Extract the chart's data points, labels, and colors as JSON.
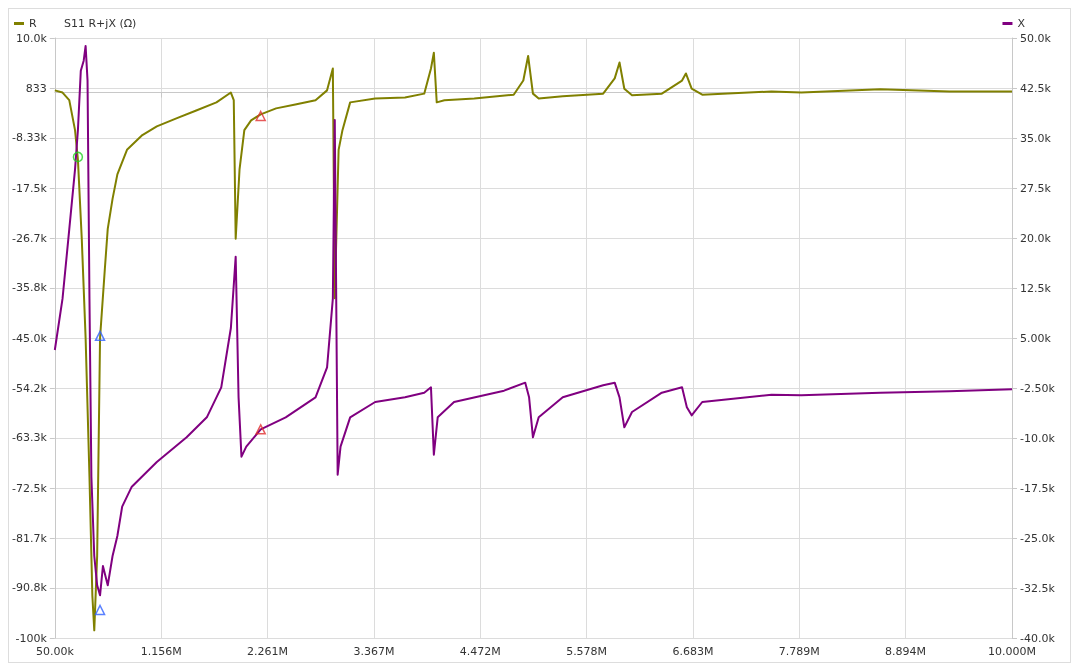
{
  "chart_data": {
    "type": "line",
    "title": "S11 R+jX (Ω)",
    "xlim": [
      50000,
      10000000
    ],
    "xticks": [
      {
        "value": 50000,
        "label": "50.00k"
      },
      {
        "value": 1156000,
        "label": "1.156M"
      },
      {
        "value": 2261000,
        "label": "2.261M"
      },
      {
        "value": 3367000,
        "label": "3.367M"
      },
      {
        "value": 4472000,
        "label": "4.472M"
      },
      {
        "value": 5578000,
        "label": "5.578M"
      },
      {
        "value": 6683000,
        "label": "6.683M"
      },
      {
        "value": 7789000,
        "label": "7.789M"
      },
      {
        "value": 8894000,
        "label": "8.894M"
      },
      {
        "value": 10000000,
        "label": "10.000M"
      }
    ],
    "ylim": [
      -100000,
      10000
    ],
    "yticks": [
      {
        "value": 10000,
        "label": "10.0k"
      },
      833,
      {
        "value": -8333,
        "label": "-8.33k"
      },
      {
        "value": -17500,
        "label": "-17.5k"
      },
      {
        "value": -26667,
        "label": "-26.7k"
      },
      {
        "value": -35833,
        "label": "-35.8k"
      },
      {
        "value": -45000,
        "label": "-45.0k"
      },
      {
        "value": -54167,
        "label": "-54.2k"
      },
      {
        "value": -63333,
        "label": "-63.3k"
      },
      {
        "value": -72500,
        "label": "-72.5k"
      },
      {
        "value": -81667,
        "label": "-81.7k"
      },
      {
        "value": -90833,
        "label": "-90.8k"
      },
      {
        "value": -100000,
        "label": "-100k"
      }
    ],
    "y2lim": [
      -40000,
      50000
    ],
    "y2ticks": [
      {
        "value": 50000,
        "label": "50.0k"
      },
      {
        "value": 42500,
        "label": "42.5k"
      },
      {
        "value": 35000,
        "label": "35.0k"
      },
      {
        "value": 27500,
        "label": "27.5k"
      },
      {
        "value": 20000,
        "label": "20.0k"
      },
      {
        "value": 12500,
        "label": "12.5k"
      },
      {
        "value": 5000,
        "label": "5.00k"
      },
      {
        "value": -2500,
        "label": "-2.50k"
      },
      {
        "value": -10000,
        "label": "-10.0k"
      },
      {
        "value": -17500,
        "label": "-17.5k"
      },
      {
        "value": -25000,
        "label": "-25.0k"
      },
      {
        "value": -32500,
        "label": "-32.5k"
      },
      {
        "value": -40000,
        "label": "-40.0k"
      }
    ],
    "grid": true,
    "legend": "top",
    "marker": "none",
    "series": [
      {
        "name": "R",
        "color": "#808000",
        "x": [
          50000,
          130000,
          200000,
          260000,
          290000,
          330000,
          370000,
          410000,
          440000,
          460000,
          490000,
          520000,
          570000,
          600000,
          650000,
          700000,
          800000,
          960000,
          1110000,
          1320000,
          1520000,
          1730000,
          1880000,
          1910000,
          1930000,
          1970000,
          2020000,
          2090000,
          2190000,
          2350000,
          2550000,
          2760000,
          2880000,
          2940000,
          2960000,
          3000000,
          3040000,
          3120000,
          3380000,
          3690000,
          3890000,
          3960000,
          3990000,
          4020000,
          4100000,
          4410000,
          4820000,
          4920000,
          4970000,
          5020000,
          5080000,
          5330000,
          5750000,
          5870000,
          5920000,
          5970000,
          6050000,
          6360000,
          6570000,
          6610000,
          6670000,
          6780000,
          7500000,
          7810000,
          8630000,
          9350000,
          10000000
        ],
        "values": [
          400,
          0,
          -1400,
          -6900,
          -12300,
          -26800,
          -45000,
          -70400,
          -92200,
          -98600,
          -84900,
          -45000,
          -32300,
          -25000,
          -19500,
          -15000,
          -10500,
          -7800,
          -6200,
          -4700,
          -3300,
          -1800,
          0,
          -1400,
          -26800,
          -14100,
          -6900,
          -5100,
          -4000,
          -2900,
          -2200,
          -1400,
          400,
          4400,
          -37700,
          -10500,
          -6900,
          -1800,
          -1100,
          -900,
          -200,
          4400,
          7300,
          -1800,
          -1400,
          -1100,
          -400,
          2200,
          6700,
          -200,
          -1100,
          -700,
          -200,
          2600,
          5500,
          700,
          -500,
          -200,
          2200,
          3500,
          700,
          -400,
          200,
          0,
          600,
          200,
          200
        ]
      },
      {
        "name": "X",
        "color": "#800080",
        "axis": "y2",
        "x": [
          50000,
          130000,
          200000,
          260000,
          290000,
          320000,
          350000,
          370000,
          390000,
          410000,
          430000,
          460000,
          490000,
          520000,
          550000,
          600000,
          650000,
          700000,
          750000,
          850000,
          1110000,
          1420000,
          1630000,
          1780000,
          1880000,
          1930000,
          1960000,
          1990000,
          2040000,
          2190000,
          2450000,
          2760000,
          2880000,
          2940000,
          2960000,
          2990000,
          3020000,
          3120000,
          3380000,
          3690000,
          3890000,
          3960000,
          3990000,
          4030000,
          4200000,
          4720000,
          4940000,
          4980000,
          5020000,
          5080000,
          5330000,
          5750000,
          5870000,
          5920000,
          5970000,
          6050000,
          6360000,
          6570000,
          6620000,
          6670000,
          6780000,
          7500000,
          7810000,
          8630000,
          9350000,
          10000000
        ],
        "values": [
          3200,
          10900,
          21300,
          30300,
          36200,
          45100,
          46600,
          48800,
          43600,
          10900,
          -15800,
          -27700,
          -32100,
          -33600,
          -29200,
          -32100,
          -27700,
          -24700,
          -20300,
          -17300,
          -13600,
          -9900,
          -6900,
          -2400,
          6500,
          17200,
          -3900,
          -12800,
          -11300,
          -8700,
          -6900,
          -3900,
          600,
          10900,
          37700,
          -15500,
          -11300,
          -6900,
          -4600,
          -3900,
          -3200,
          -2400,
          -12500,
          -6900,
          -4600,
          -2900,
          -1700,
          -3900,
          -9900,
          -6900,
          -3900,
          -2100,
          -1700,
          -3900,
          -8400,
          -6100,
          -3200,
          -2400,
          -5400,
          -6600,
          -4600,
          -3500,
          -3600,
          -3200,
          -3000,
          -2700
        ]
      },
      {
        "type": "scatter",
        "color": "#20d020",
        "marker": "circle",
        "x": [
          290000
        ],
        "values": [
          -11800
        ]
      },
      {
        "type": "scatter",
        "color": "#3060ff",
        "marker": "triangle",
        "x": [
          520000
        ],
        "values": [
          -44600
        ]
      },
      {
        "type": "scatter",
        "color": "#3060ff",
        "marker": "triangle",
        "axis": "y2",
        "x": [
          520000
        ],
        "values": [
          -35800
        ]
      },
      {
        "type": "scatter",
        "color": "#e03030",
        "marker": "triangle",
        "x": [
          2190000
        ],
        "values": [
          -4300
        ]
      },
      {
        "type": "scatter",
        "color": "#e03030",
        "marker": "triangle",
        "axis": "y2",
        "x": [
          2190000
        ],
        "values": [
          -8700
        ]
      }
    ]
  }
}
